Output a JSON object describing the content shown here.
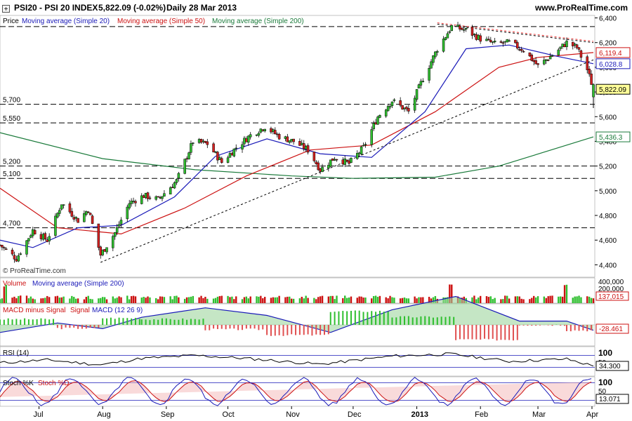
{
  "header": {
    "symbol": "PSI20 - PSI 20 INDEX",
    "quote": "5,822.09 (-0.02%)",
    "period": "Daily  28 Mar 2013",
    "site": "www.ProRealTime.com"
  },
  "chart_data": [
    {
      "type": "candlestick",
      "title": "PSI20 - PSI 20 INDEX",
      "legend": [
        {
          "label": "Price",
          "color": "#000000"
        },
        {
          "label": "Moving average (Simple 20)",
          "color": "#1a1ab8"
        },
        {
          "label": "Moving average (Simple 50)",
          "color": "#cc1111"
        },
        {
          "label": "Moving average (Simple 200)",
          "color": "#1a7a3a"
        }
      ],
      "watermark": "© ProRealTime.com",
      "ylim": [
        4300,
        6420
      ],
      "yticks": [
        "6,400",
        "6,200",
        "6,000",
        "5,800",
        "5,600",
        "5,400",
        "5,200",
        "5,000",
        "4,800",
        "4,600",
        "4,400"
      ],
      "xticks": [
        "Jul",
        "Aug",
        "Sep",
        "Oct",
        "Nov",
        "Dec",
        "2013",
        "Feb",
        "Mar",
        "Apr"
      ],
      "x_start": "2012-06-12",
      "x_end": "2013-03-28",
      "hlines": [
        {
          "value": 6330,
          "label": ""
        },
        {
          "value": 5700,
          "label": "5,700"
        },
        {
          "value": 5550,
          "label": "5,550"
        },
        {
          "value": 5200,
          "label": "5,200"
        },
        {
          "value": 5100,
          "label": "5,100"
        },
        {
          "value": 4700,
          "label": "4,700"
        }
      ],
      "close_series": [
        [
          "2012-06-12",
          4560
        ],
        [
          "2012-06-20",
          4450
        ],
        [
          "2012-06-28",
          4680
        ],
        [
          "2012-07-05",
          4600
        ],
        [
          "2012-07-12",
          4900
        ],
        [
          "2012-07-20",
          4760
        ],
        [
          "2012-07-25",
          4850
        ],
        [
          "2012-07-31",
          4480
        ],
        [
          "2012-08-07",
          4660
        ],
        [
          "2012-08-14",
          4900
        ],
        [
          "2012-08-21",
          4960
        ],
        [
          "2012-08-28",
          4930
        ],
        [
          "2012-09-06",
          5080
        ],
        [
          "2012-09-14",
          5400
        ],
        [
          "2012-09-21",
          5380
        ],
        [
          "2012-09-28",
          5230
        ],
        [
          "2012-10-05",
          5350
        ],
        [
          "2012-10-12",
          5450
        ],
        [
          "2012-10-19",
          5520
        ],
        [
          "2012-10-26",
          5440
        ],
        [
          "2012-11-02",
          5400
        ],
        [
          "2012-11-09",
          5330
        ],
        [
          "2012-11-15",
          5170
        ],
        [
          "2012-11-22",
          5270
        ],
        [
          "2012-11-29",
          5220
        ],
        [
          "2012-12-06",
          5350
        ],
        [
          "2012-12-13",
          5600
        ],
        [
          "2012-12-20",
          5730
        ],
        [
          "2012-12-28",
          5640
        ],
        [
          "2013-01-04",
          5910
        ],
        [
          "2013-01-11",
          6150
        ],
        [
          "2013-01-18",
          6330
        ],
        [
          "2013-01-25",
          6300
        ],
        [
          "2013-02-01",
          6230
        ],
        [
          "2013-02-08",
          6190
        ],
        [
          "2013-02-15",
          6200
        ],
        [
          "2013-02-22",
          6140
        ],
        [
          "2013-03-01",
          6010
        ],
        [
          "2013-03-08",
          6100
        ],
        [
          "2013-03-15",
          6200
        ],
        [
          "2013-03-20",
          6160
        ],
        [
          "2013-03-25",
          5980
        ],
        [
          "2013-03-28",
          5822.09
        ]
      ],
      "trendlines": [
        {
          "from": [
            "2012-07-31",
            4420
          ],
          "to": [
            "2013-03-28",
            6060
          ],
          "style": "dashed",
          "color": "#000000"
        },
        {
          "from": [
            "2013-01-11",
            6350
          ],
          "to": [
            "2013-03-28",
            6200
          ],
          "style": "dashed",
          "color": "#000000"
        },
        {
          "from": [
            "2013-01-11",
            6360
          ],
          "to": [
            "2013-03-28",
            6210
          ],
          "style": "dashed",
          "color": "#ee3333"
        }
      ],
      "ma200_series": [
        [
          "2012-06-12",
          5470
        ],
        [
          "2012-08-01",
          5260
        ],
        [
          "2012-09-15",
          5170
        ],
        [
          "2012-11-01",
          5120
        ],
        [
          "2012-12-01",
          5100
        ],
        [
          "2013-01-10",
          5110
        ],
        [
          "2013-02-10",
          5200
        ],
        [
          "2013-03-28",
          5436.3
        ]
      ],
      "ma50_series": [
        [
          "2012-06-12",
          5020
        ],
        [
          "2012-07-10",
          4700
        ],
        [
          "2012-08-10",
          4650
        ],
        [
          "2012-09-10",
          4860
        ],
        [
          "2012-10-10",
          5120
        ],
        [
          "2012-11-10",
          5330
        ],
        [
          "2012-12-10",
          5370
        ],
        [
          "2013-01-10",
          5640
        ],
        [
          "2013-02-10",
          6000
        ],
        [
          "2013-03-01",
          6080
        ],
        [
          "2013-03-28",
          6119.4
        ]
      ],
      "ma20_series": [
        [
          "2012-06-12",
          4600
        ],
        [
          "2012-06-28",
          4540
        ],
        [
          "2012-07-20",
          4700
        ],
        [
          "2012-08-10",
          4720
        ],
        [
          "2012-09-05",
          4950
        ],
        [
          "2012-09-25",
          5280
        ],
        [
          "2012-10-20",
          5420
        ],
        [
          "2012-11-15",
          5300
        ],
        [
          "2012-12-10",
          5270
        ],
        [
          "2013-01-05",
          5640
        ],
        [
          "2013-01-25",
          6150
        ],
        [
          "2013-02-15",
          6180
        ],
        [
          "2013-03-10",
          6090
        ],
        [
          "2013-03-28",
          6028.8
        ]
      ],
      "value_tags": [
        {
          "value": 6119.4,
          "label": "6,119.4",
          "color": "#cc1111"
        },
        {
          "value": 6028.8,
          "label": "6,028.8",
          "color": "#1a1ab8"
        },
        {
          "value": 5822.09,
          "label": "5,822.09",
          "color": "#000000",
          "fill": "#ffff99"
        },
        {
          "value": 5436.3,
          "label": "5,436.3",
          "color": "#1a7a3a"
        }
      ]
    },
    {
      "type": "bar",
      "title": "Volume",
      "legend": [
        {
          "label": "Volume",
          "color": "#cc1111"
        },
        {
          "label": "Moving average (Simple 200)",
          "color": "#1a1ab8"
        }
      ],
      "ylim": [
        0,
        400000
      ],
      "yticks": [
        "400,000",
        "200,000"
      ],
      "last_value": "137,015",
      "spike_dates": [
        "2012-06-15",
        "2013-01-18",
        "2013-03-15"
      ]
    },
    {
      "type": "area",
      "title": "MACD minus Signal Signal MACD (12 26 9)",
      "legend": [
        {
          "label": "MACD minus Signal",
          "color": "#cc1111"
        },
        {
          "label": "Signal",
          "color": "#cc1111"
        },
        {
          "label": "MACD (12 26 9)",
          "color": "#1a1ab8"
        }
      ],
      "last_value": "-28.461",
      "macd_series": [
        [
          "2012-06-12",
          -40
        ],
        [
          "2012-07-10",
          10
        ],
        [
          "2012-08-01",
          -20
        ],
        [
          "2012-08-20",
          40
        ],
        [
          "2012-09-20",
          90
        ],
        [
          "2012-10-20",
          50
        ],
        [
          "2012-11-20",
          -40
        ],
        [
          "2012-12-20",
          80
        ],
        [
          "2013-01-20",
          150
        ],
        [
          "2013-02-20",
          20
        ],
        [
          "2013-03-15",
          20
        ],
        [
          "2013-03-28",
          -28.461
        ]
      ]
    },
    {
      "type": "line",
      "title": "RSI (14)",
      "yticks": [
        "100",
        "50"
      ],
      "last_value": "34.300",
      "levels": [
        30,
        70
      ],
      "rsi_series": [
        [
          "2012-06-12",
          45
        ],
        [
          "2012-07-05",
          55
        ],
        [
          "2012-07-31",
          38
        ],
        [
          "2012-08-20",
          60
        ],
        [
          "2012-09-15",
          70
        ],
        [
          "2012-10-10",
          60
        ],
        [
          "2012-11-15",
          40
        ],
        [
          "2012-12-20",
          68
        ],
        [
          "2013-01-18",
          75
        ],
        [
          "2013-02-15",
          50
        ],
        [
          "2013-03-15",
          58
        ],
        [
          "2013-03-28",
          34.3
        ]
      ]
    },
    {
      "type": "line",
      "title": "Stoch %K Stoch %D (14 3 5)",
      "legend": [
        {
          "label": "Stoch %K",
          "color": "#1a1ab8"
        },
        {
          "label": "Stoch %D",
          "color": "#cc1111"
        }
      ],
      "yticks": [
        "100",
        "50"
      ],
      "last_value": "13.071",
      "levels": [
        20,
        80
      ]
    }
  ]
}
